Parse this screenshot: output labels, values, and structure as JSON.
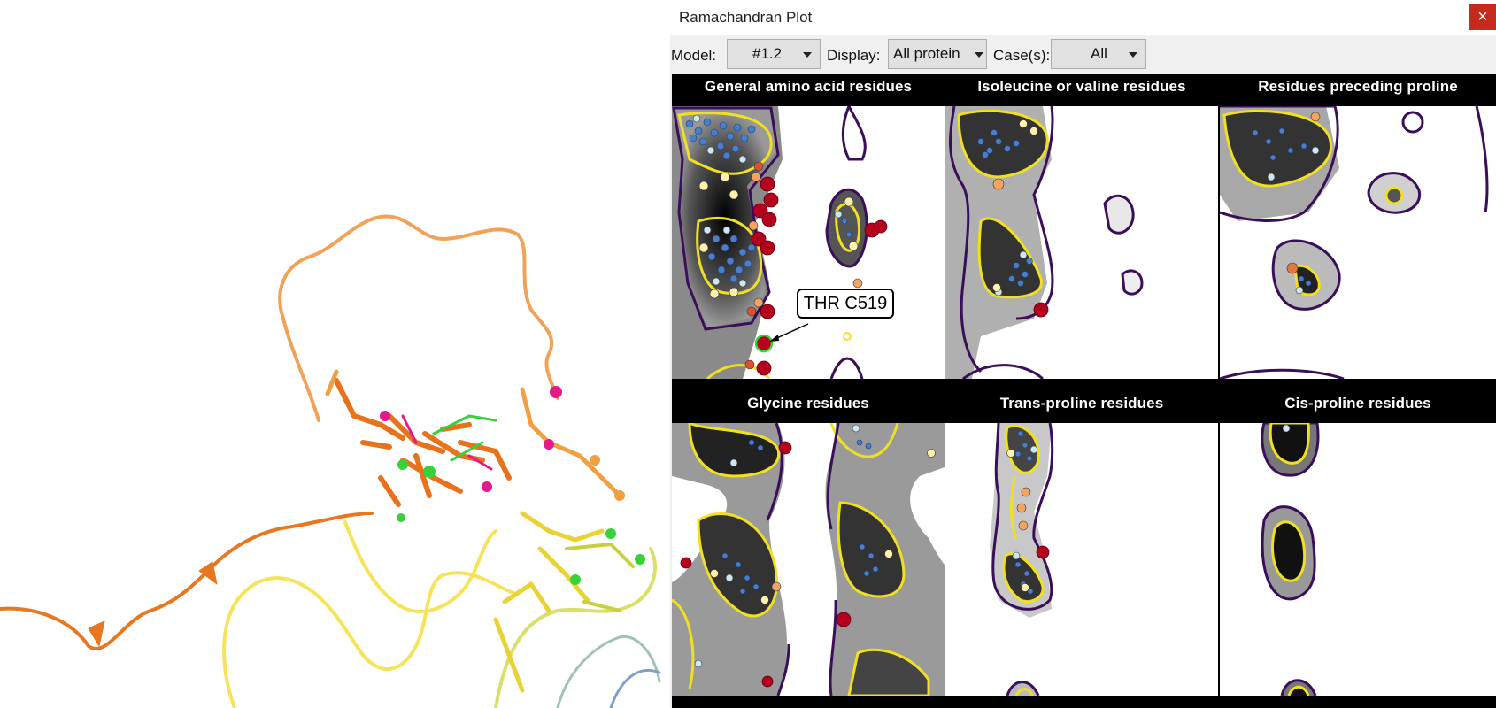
{
  "window": {
    "title": "Ramachandran Plot",
    "close_icon": "×"
  },
  "toolbar": {
    "model_label": "Model:",
    "model_value": "#1.2",
    "display_label": "Display:",
    "display_value": "All protein",
    "cases_label": "Case(s):",
    "cases_value": "All"
  },
  "panels": [
    {
      "title": "General amino acid residues"
    },
    {
      "title": "Isoleucine or valine residues"
    },
    {
      "title": "Residues preceding proline"
    },
    {
      "title": "Glycine residues"
    },
    {
      "title": "Trans-proline residues"
    },
    {
      "title": "Cis-proline residues"
    }
  ],
  "callout": {
    "label": "THR C519"
  },
  "colors": {
    "outlier": "#b5001e",
    "allowed": "#f4a460",
    "favored_low": "#ffefa8",
    "favored_high": "#2b5fb4",
    "contour_favored": "#f0e020",
    "contour_allowed": "#3a0f5a"
  }
}
